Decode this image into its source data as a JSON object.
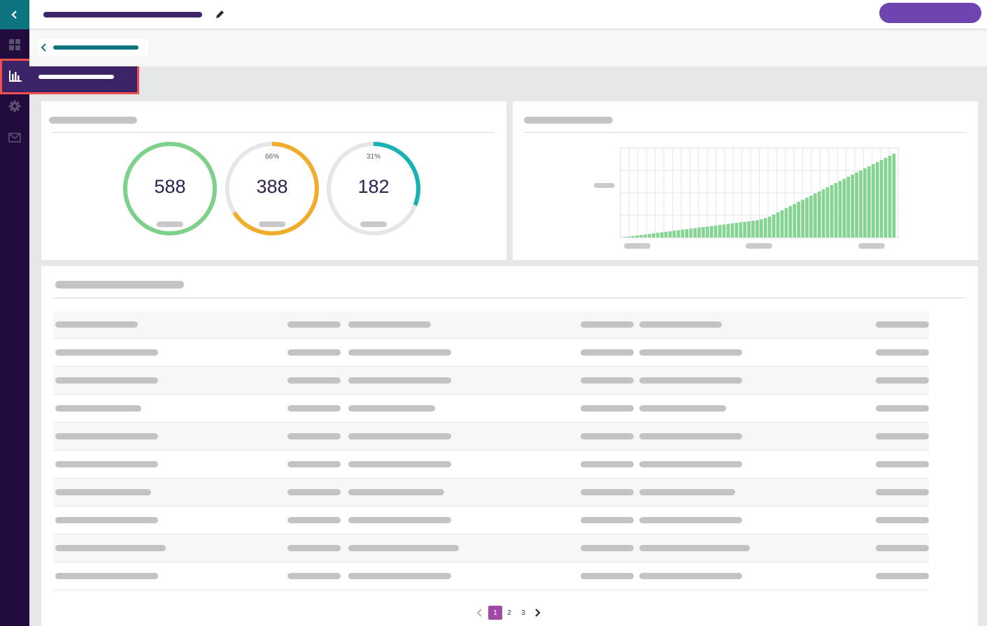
{
  "sidebar": {
    "icons": [
      "grid-icon",
      "bar-chart-icon",
      "gear-icon",
      "mail-icon"
    ],
    "colors": {
      "background": "#220c3e",
      "collapse": "#0e7580",
      "active": "#3c2367",
      "highlight": "#f0524b"
    }
  },
  "gauges": [
    {
      "value": "588",
      "pct": "",
      "fraction": 1.0,
      "color": "#7dd18a"
    },
    {
      "value": "388",
      "pct": "66%",
      "fraction": 0.66,
      "color": "#f2ac2b"
    },
    {
      "value": "182",
      "pct": "31%",
      "fraction": 0.31,
      "color": "#17b3b3"
    }
  ],
  "chart_data": {
    "type": "bar",
    "values": [
      1,
      2,
      3,
      4,
      5,
      6,
      7,
      8,
      9,
      10,
      11,
      12,
      13,
      14,
      15,
      16,
      17,
      18,
      19,
      20,
      21,
      22,
      23,
      24,
      25,
      26,
      27,
      28,
      29,
      30,
      31,
      32,
      33,
      35,
      37,
      40,
      44,
      48,
      52,
      56,
      60,
      64,
      68,
      72,
      76,
      80,
      84,
      88,
      92,
      96,
      100,
      104,
      108,
      112,
      116,
      120,
      124,
      128,
      132,
      136,
      140,
      144,
      148,
      152,
      156,
      160
    ],
    "bar_color": "#84d492",
    "grid": true
  },
  "pagination": {
    "pages": [
      "1",
      "2",
      "3"
    ],
    "current": "1"
  }
}
